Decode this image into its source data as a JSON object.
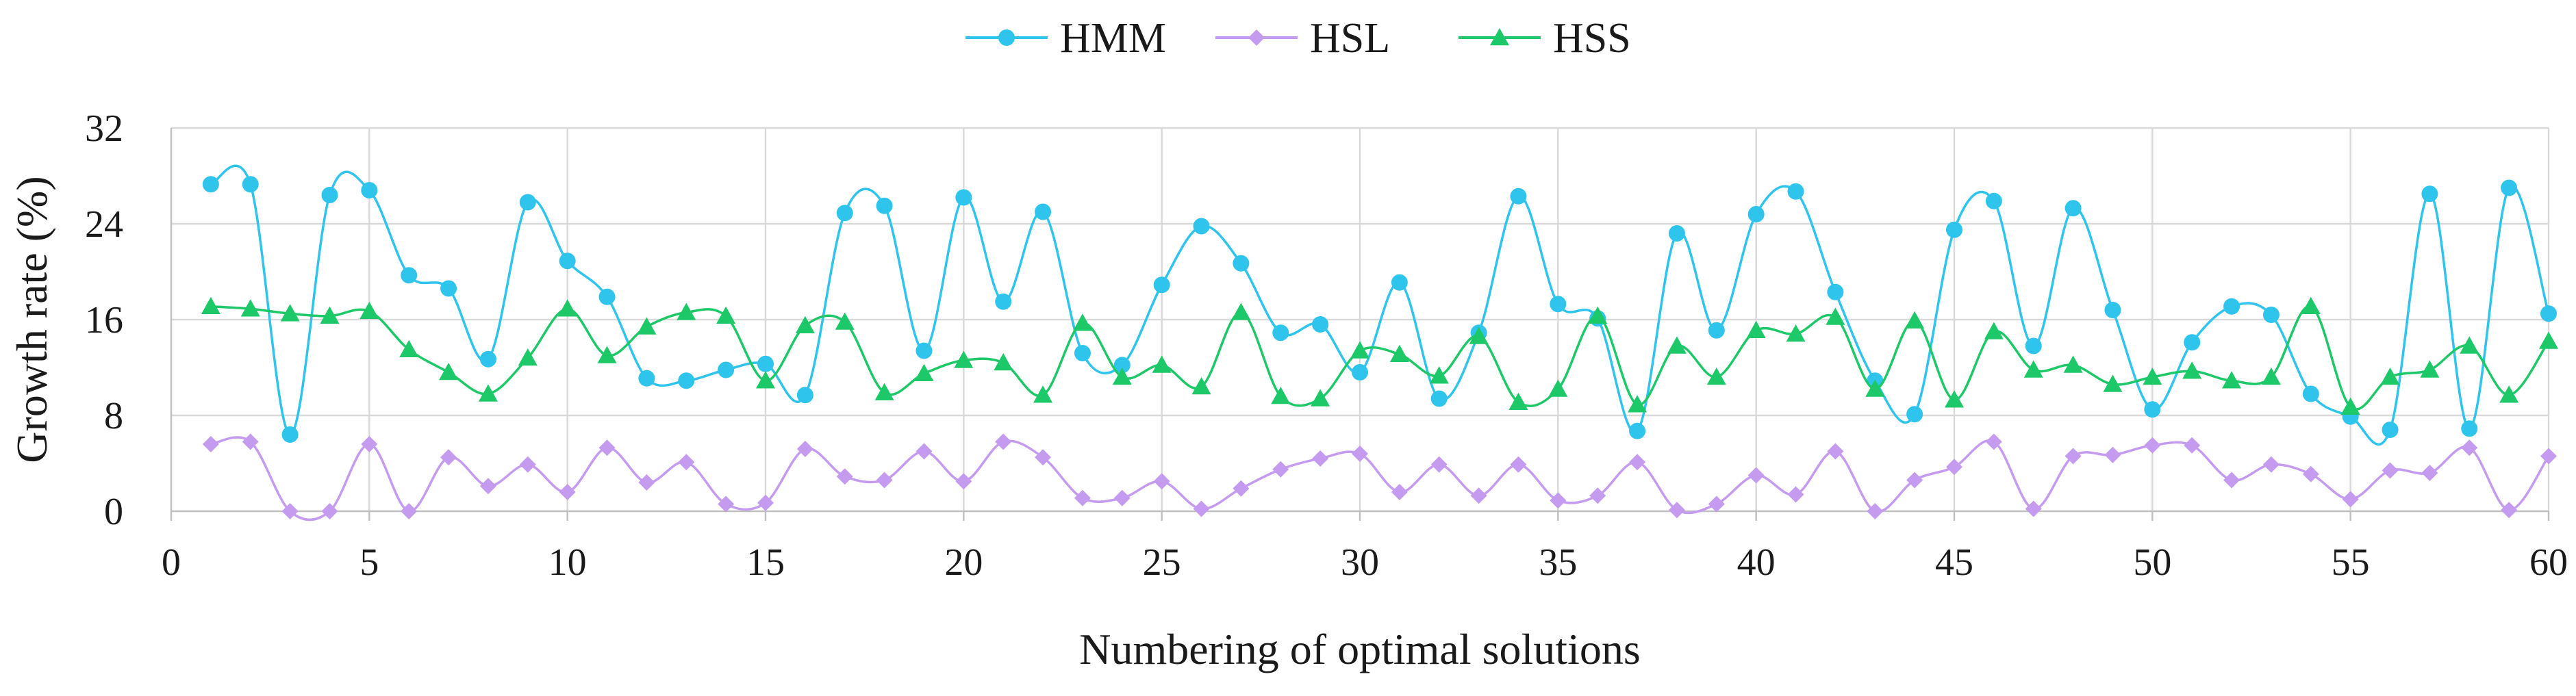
{
  "chart_data": {
    "type": "line",
    "title": "",
    "xlabel": "Numbering of optimal solutions",
    "ylabel": "Growth rate (%)",
    "xlim": [
      0,
      60
    ],
    "ylim": [
      0,
      32
    ],
    "xticks": [
      0,
      5,
      10,
      15,
      20,
      25,
      30,
      35,
      40,
      45,
      50,
      55,
      60
    ],
    "yticks": [
      0,
      8,
      16,
      24,
      32
    ],
    "grid": true,
    "legend_position": "top-center",
    "x": [
      1,
      2,
      3,
      4,
      5,
      6,
      7,
      8,
      9,
      10,
      11,
      12,
      13,
      14,
      15,
      16,
      17,
      18,
      19,
      20,
      21,
      22,
      23,
      24,
      25,
      26,
      27,
      28,
      29,
      30,
      31,
      32,
      33,
      34,
      35,
      36,
      37,
      38,
      39,
      40,
      41,
      42,
      43,
      44,
      45,
      46,
      47,
      48,
      49,
      50,
      51,
      52,
      53,
      54,
      55,
      56,
      57,
      58,
      59,
      60
    ],
    "series": [
      {
        "name": "HMM",
        "color": "#2EC4EC",
        "marker": "circle",
        "values": [
          27.3,
          27.3,
          6.4,
          26.4,
          26.8,
          19.7,
          18.6,
          12.7,
          25.8,
          20.9,
          17.9,
          11.1,
          10.9,
          11.8,
          12.3,
          9.7,
          24.9,
          25.5,
          13.4,
          26.2,
          17.5,
          25,
          13.2,
          12.2,
          18.9,
          23.8,
          20.7,
          14.9,
          15.6,
          11.6,
          19.1,
          9.4,
          14.9,
          26.3,
          17.3,
          16.1,
          6.7,
          23.2,
          15.1,
          24.8,
          26.7,
          18.3,
          10.9,
          8.1,
          23.5,
          25.9,
          13.8,
          25.3,
          16.8,
          8.5,
          14.1,
          17.1,
          16.4,
          9.8,
          7.9,
          6.8,
          26.5,
          6.9,
          27,
          16.5
        ]
      },
      {
        "name": "HSL",
        "color": "#C49BEF",
        "marker": "diamond",
        "values": [
          5.6,
          5.8,
          0,
          0,
          5.6,
          0,
          4.5,
          2.1,
          3.9,
          1.6,
          5.3,
          2.4,
          4.1,
          0.6,
          0.7,
          5.2,
          2.9,
          2.6,
          5,
          2.5,
          5.8,
          4.5,
          1.1,
          1.1,
          2.5,
          0.2,
          1.9,
          3.5,
          4.4,
          4.8,
          1.6,
          3.9,
          1.3,
          3.9,
          0.9,
          1.3,
          4.1,
          0.1,
          0.6,
          3,
          1.4,
          5,
          0,
          2.6,
          3.7,
          5.8,
          0.2,
          4.6,
          4.7,
          5.5,
          5.5,
          2.6,
          3.9,
          3.1,
          1,
          3.4,
          3.2,
          5.3,
          0.1,
          4.6
        ]
      },
      {
        "name": "HSS",
        "color": "#1CC867",
        "marker": "triangle",
        "values": [
          17.1,
          16.9,
          16.5,
          16.3,
          16.7,
          13.5,
          11.6,
          9.8,
          12.8,
          16.9,
          13,
          15.4,
          16.6,
          16.3,
          10.9,
          15.5,
          15.8,
          9.9,
          11.5,
          12.6,
          12.4,
          9.7,
          15.7,
          11.2,
          12.2,
          10.4,
          16.6,
          9.6,
          9.4,
          13.4,
          13.1,
          11.3,
          14.6,
          9.1,
          10.2,
          16.3,
          8.9,
          13.8,
          11.2,
          15.1,
          14.8,
          16.2,
          10.2,
          15.9,
          9.3,
          15,
          11.8,
          12.2,
          10.6,
          11.2,
          11.7,
          10.9,
          11.2,
          17.1,
          8.7,
          11.2,
          11.8,
          13.8,
          9.7,
          14.2
        ]
      }
    ]
  }
}
